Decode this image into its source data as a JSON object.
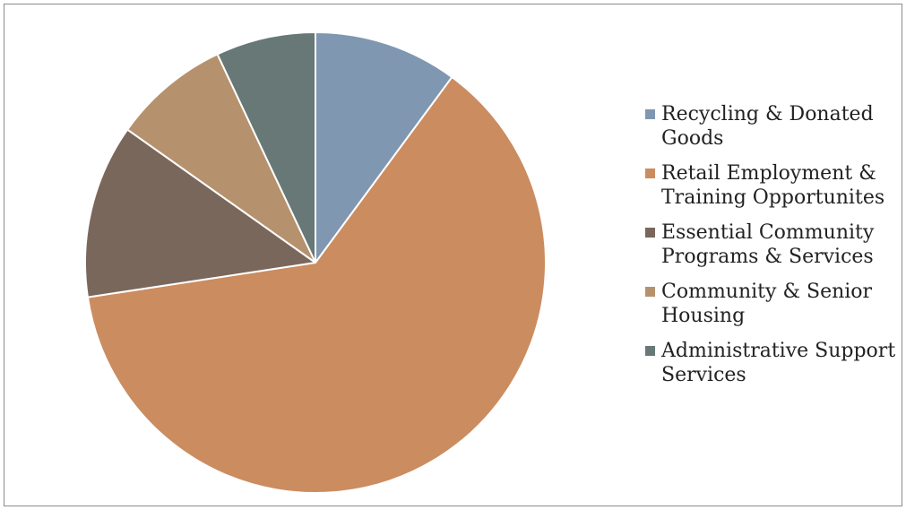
{
  "chart_data": {
    "type": "pie",
    "title": "",
    "slices": [
      {
        "label": "Recycling & Donated Goods",
        "value": 10.1,
        "color": "#7f97b0"
      },
      {
        "label": "Retail Employment & Training Opportunites",
        "value": 62.5,
        "color": "#cb8c60"
      },
      {
        "label": "Essential Community Programs & Services",
        "value": 12.2,
        "color": "#7a675c"
      },
      {
        "label": "Community & Senior Housing",
        "value": 8.2,
        "color": "#b5926d"
      },
      {
        "label": "Administrative Support Services",
        "value": 7.0,
        "color": "#677877"
      }
    ],
    "legend_position": "right",
    "start_angle_deg": 0,
    "direction": "clockwise"
  }
}
